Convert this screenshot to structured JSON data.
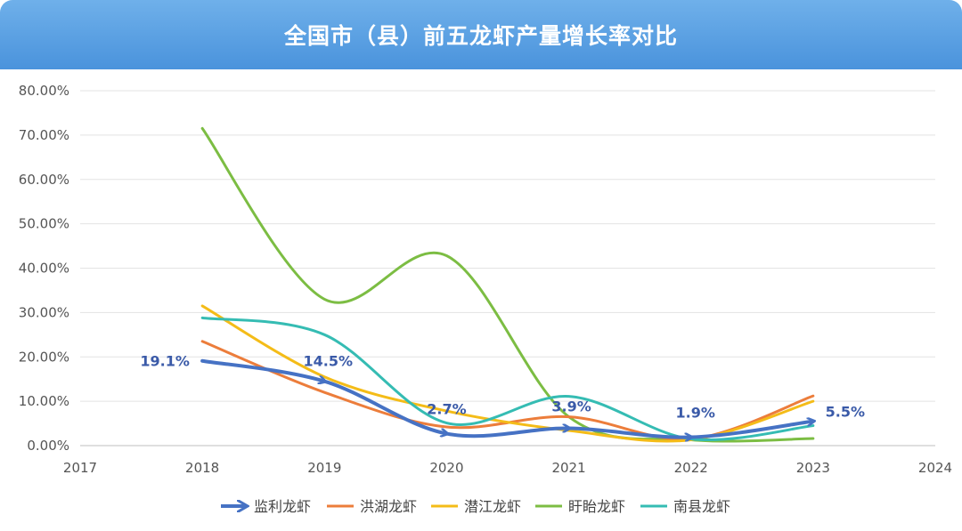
{
  "chart_data": {
    "type": "line",
    "title": "全国市（县）前五龙虾产量增长率对比",
    "xlabel": "",
    "ylabel": "",
    "xlim": [
      2017,
      2024
    ],
    "ylim": [
      0,
      0.8
    ],
    "x_ticks": [
      "2017",
      "2018",
      "2019",
      "2020",
      "2021",
      "2022",
      "2023",
      "2024"
    ],
    "y_ticks": [
      "0.00%",
      "10.00%",
      "20.00%",
      "30.00%",
      "40.00%",
      "50.00%",
      "60.00%",
      "70.00%",
      "80.00%"
    ],
    "grid": "horizontal",
    "legend_position": "bottom",
    "x": [
      2018,
      2019,
      2020,
      2021,
      2022,
      2023
    ],
    "series": [
      {
        "name": "盱眙龙虾",
        "color": "#7cbd43",
        "values": [
          0.715,
          0.33,
          0.428,
          0.065,
          0.013,
          0.016
        ]
      },
      {
        "name": "洪湖龙虾",
        "color": "#ec7d3b",
        "values": [
          0.235,
          0.12,
          0.042,
          0.065,
          0.015,
          0.112
        ]
      },
      {
        "name": "潜江龙虾",
        "color": "#f4bc18",
        "values": [
          0.315,
          0.155,
          0.078,
          0.034,
          0.013,
          0.1
        ]
      },
      {
        "name": "南县龙虾",
        "color": "#35bcb3",
        "values": [
          0.288,
          0.25,
          0.051,
          0.111,
          0.015,
          0.045
        ]
      },
      {
        "name": "监利龙虾",
        "color": "#4672c4",
        "arrow": true,
        "values": [
          0.191,
          0.145,
          0.027,
          0.039,
          0.019,
          0.055
        ]
      }
    ],
    "data_labels": [
      {
        "series": "监利龙虾",
        "x": 2018,
        "text": "19.1%"
      },
      {
        "series": "监利龙虾",
        "x": 2019,
        "text": "14.5%"
      },
      {
        "series": "监利龙虾",
        "x": 2020,
        "text": "2.7%"
      },
      {
        "series": "监利龙虾",
        "x": 2021,
        "text": "3.9%"
      },
      {
        "series": "监利龙虾",
        "x": 2022,
        "text": "1.9%"
      },
      {
        "series": "监利龙虾",
        "x": 2023,
        "text": "5.5%"
      }
    ],
    "legend_order": [
      "监利龙虾",
      "洪湖龙虾",
      "潜江龙虾",
      "盱眙龙虾",
      "南县龙虾"
    ]
  }
}
